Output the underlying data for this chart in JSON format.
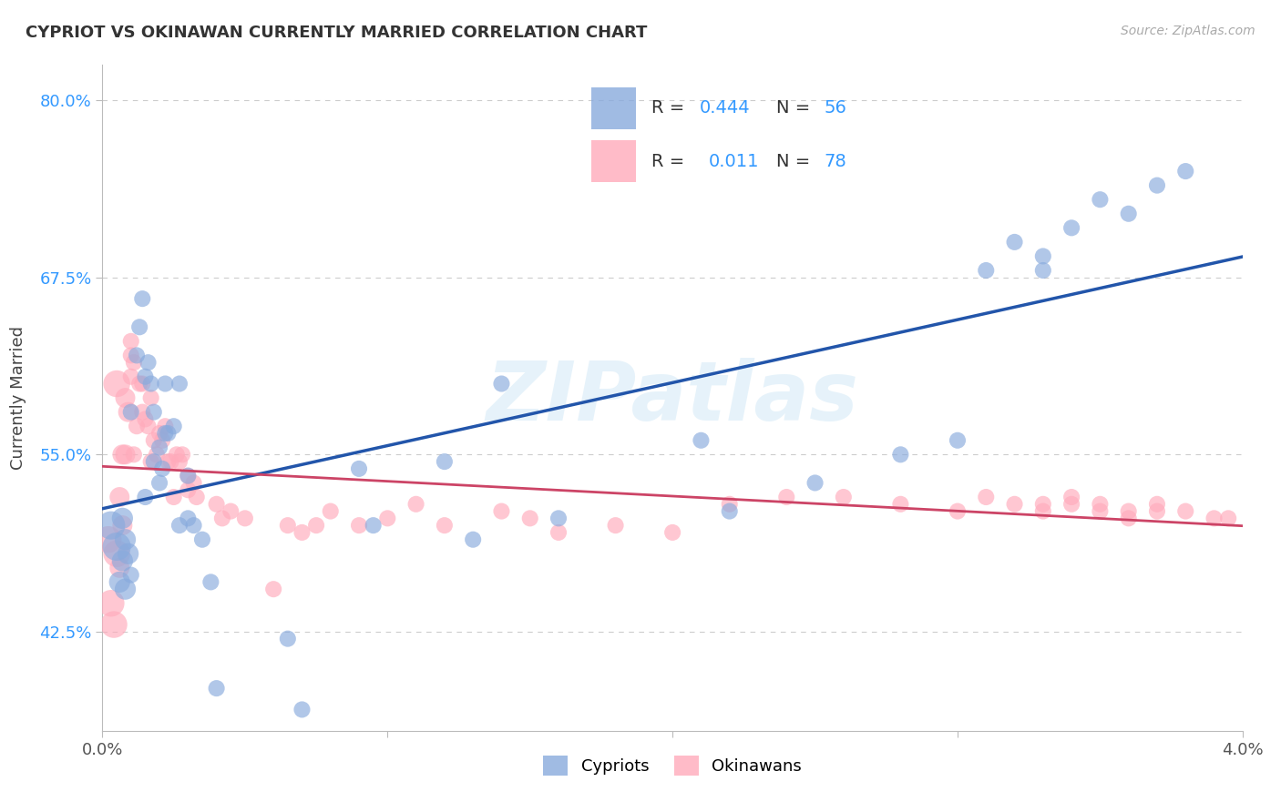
{
  "title": "CYPRIOT VS OKINAWAN CURRENTLY MARRIED CORRELATION CHART",
  "source": "Source: ZipAtlas.com",
  "ylabel": "Currently Married",
  "x_min": 0.0,
  "x_max": 0.04,
  "y_min": 0.355,
  "y_max": 0.825,
  "y_ticks": [
    0.425,
    0.55,
    0.675,
    0.8
  ],
  "y_tick_labels": [
    "42.5%",
    "55.0%",
    "67.5%",
    "80.0%"
  ],
  "x_ticks": [
    0.0,
    0.01,
    0.02,
    0.03,
    0.04
  ],
  "x_tick_labels": [
    "0.0%",
    "",
    "",
    "",
    "4.0%"
  ],
  "cypriot_color": "#88aadd",
  "okinawan_color": "#ffaabb",
  "line_color_cypriot": "#2255aa",
  "line_color_okinawan": "#cc4466",
  "watermark": "ZIPatlas",
  "cypriot_label": "Cypriots",
  "okinawan_label": "Okinawans",
  "R_cypriot": "0.444",
  "N_cypriot": "56",
  "R_okinawan": "0.011",
  "N_okinawan": "78",
  "title_fontsize": 13,
  "axis_label_fontsize": 13,
  "tick_fontsize": 13,
  "legend_fontsize": 14,
  "cypriot_x": [
    0.0003,
    0.0005,
    0.0006,
    0.0007,
    0.0007,
    0.0008,
    0.0008,
    0.0009,
    0.001,
    0.001,
    0.0012,
    0.0013,
    0.0014,
    0.0015,
    0.0015,
    0.0016,
    0.0017,
    0.0018,
    0.0018,
    0.002,
    0.002,
    0.0021,
    0.0022,
    0.0022,
    0.0023,
    0.0025,
    0.0027,
    0.0027,
    0.003,
    0.003,
    0.0032,
    0.0035,
    0.0038,
    0.004,
    0.0065,
    0.007,
    0.009,
    0.0095,
    0.012,
    0.013,
    0.014,
    0.016,
    0.021,
    0.022,
    0.025,
    0.028,
    0.03,
    0.031,
    0.032,
    0.033,
    0.033,
    0.034,
    0.035,
    0.036,
    0.037,
    0.038
  ],
  "cypriot_y": [
    0.5,
    0.485,
    0.46,
    0.475,
    0.505,
    0.455,
    0.49,
    0.48,
    0.465,
    0.58,
    0.62,
    0.64,
    0.66,
    0.605,
    0.52,
    0.615,
    0.6,
    0.545,
    0.58,
    0.53,
    0.555,
    0.54,
    0.565,
    0.6,
    0.565,
    0.57,
    0.6,
    0.5,
    0.535,
    0.505,
    0.5,
    0.49,
    0.46,
    0.385,
    0.42,
    0.37,
    0.54,
    0.5,
    0.545,
    0.49,
    0.6,
    0.505,
    0.56,
    0.51,
    0.53,
    0.55,
    0.56,
    0.68,
    0.7,
    0.69,
    0.68,
    0.71,
    0.73,
    0.72,
    0.74,
    0.75
  ],
  "okinawan_x": [
    0.0002,
    0.0003,
    0.0004,
    0.0005,
    0.0005,
    0.0006,
    0.0006,
    0.0007,
    0.0007,
    0.0008,
    0.0008,
    0.0009,
    0.001,
    0.001,
    0.001,
    0.0011,
    0.0011,
    0.0012,
    0.0013,
    0.0014,
    0.0014,
    0.0015,
    0.0016,
    0.0017,
    0.0017,
    0.0018,
    0.0019,
    0.002,
    0.0021,
    0.0022,
    0.0023,
    0.0024,
    0.0025,
    0.0026,
    0.0027,
    0.0028,
    0.003,
    0.003,
    0.0032,
    0.0033,
    0.004,
    0.0042,
    0.0045,
    0.005,
    0.006,
    0.0065,
    0.007,
    0.0075,
    0.008,
    0.009,
    0.01,
    0.011,
    0.012,
    0.014,
    0.015,
    0.016,
    0.018,
    0.02,
    0.022,
    0.024,
    0.026,
    0.028,
    0.03,
    0.031,
    0.033,
    0.034,
    0.035,
    0.036,
    0.037,
    0.038,
    0.039,
    0.0395,
    0.032,
    0.033,
    0.034,
    0.035,
    0.036,
    0.037
  ],
  "okinawan_y": [
    0.49,
    0.445,
    0.43,
    0.48,
    0.6,
    0.47,
    0.52,
    0.5,
    0.55,
    0.55,
    0.59,
    0.58,
    0.605,
    0.62,
    0.63,
    0.615,
    0.55,
    0.57,
    0.6,
    0.58,
    0.6,
    0.575,
    0.57,
    0.59,
    0.545,
    0.56,
    0.55,
    0.565,
    0.56,
    0.57,
    0.545,
    0.545,
    0.52,
    0.55,
    0.545,
    0.55,
    0.525,
    0.535,
    0.53,
    0.52,
    0.515,
    0.505,
    0.51,
    0.505,
    0.455,
    0.5,
    0.495,
    0.5,
    0.51,
    0.5,
    0.505,
    0.515,
    0.5,
    0.51,
    0.505,
    0.495,
    0.5,
    0.495,
    0.515,
    0.52,
    0.52,
    0.515,
    0.51,
    0.52,
    0.515,
    0.52,
    0.515,
    0.51,
    0.515,
    0.51,
    0.505,
    0.505,
    0.515,
    0.51,
    0.515,
    0.51,
    0.505,
    0.51
  ]
}
